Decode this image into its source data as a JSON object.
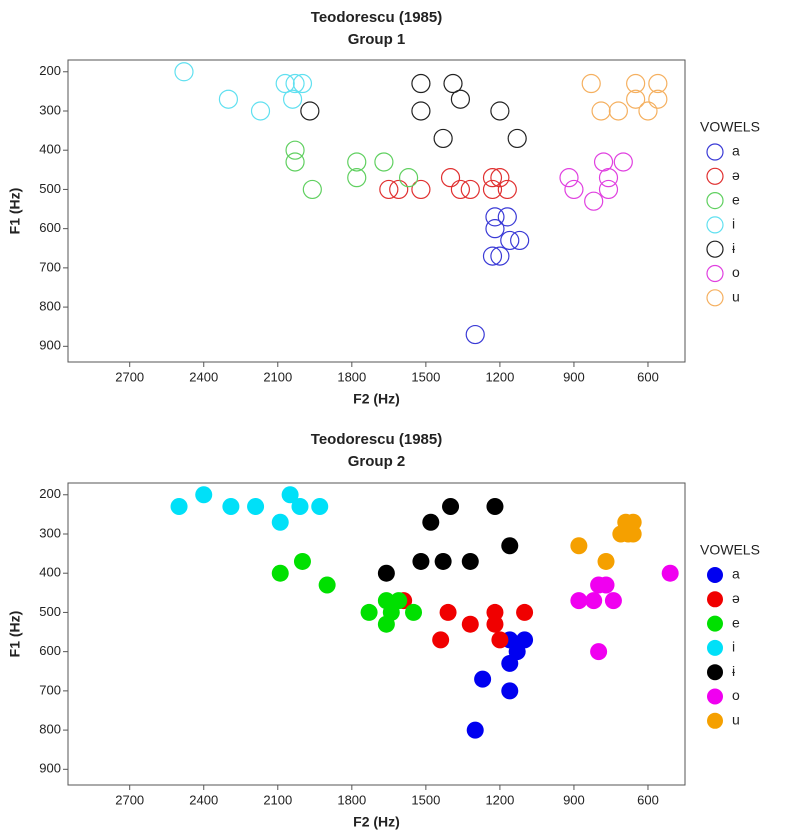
{
  "chart_data": [
    {
      "type": "scatter",
      "title": "Teodorescu (1985)",
      "subtitle": "Group 1",
      "x_label": "F2 (Hz)",
      "y_label": "F1 (Hz)",
      "xlim": [
        2950,
        450
      ],
      "xticks": [
        2700,
        2400,
        2100,
        1800,
        1500,
        1200,
        900,
        600
      ],
      "ylim": [
        940,
        170
      ],
      "yticks": [
        200,
        300,
        400,
        500,
        600,
        700,
        800,
        900
      ],
      "marker": "open",
      "legend_title": "VOWELS",
      "legend": "right",
      "series": [
        {
          "name": "a",
          "color": "#3a3ad6",
          "x": [
            1220,
            1170,
            1220,
            1160,
            1120,
            1230,
            1200,
            1300
          ],
          "y": [
            570,
            570,
            600,
            630,
            630,
            670,
            670,
            870
          ]
        },
        {
          "name": "ə",
          "color": "#e03030",
          "x": [
            1650,
            1610,
            1520,
            1400,
            1360,
            1320,
            1230,
            1200,
            1230,
            1170
          ],
          "y": [
            500,
            500,
            500,
            470,
            500,
            500,
            470,
            470,
            500,
            500
          ]
        },
        {
          "name": "e",
          "color": "#60d060",
          "x": [
            2030,
            2030,
            1960,
            1780,
            1780,
            1670,
            1570
          ],
          "y": [
            400,
            430,
            500,
            430,
            470,
            430,
            470
          ]
        },
        {
          "name": "i",
          "color": "#60e0f0",
          "x": [
            2480,
            2300,
            2170,
            2070,
            2030,
            2000,
            2040
          ],
          "y": [
            200,
            270,
            300,
            230,
            230,
            230,
            270
          ]
        },
        {
          "name": "ɨ",
          "color": "#222222",
          "x": [
            1520,
            1390,
            1360,
            1520,
            1200,
            1430,
            1130,
            1970
          ],
          "y": [
            230,
            230,
            270,
            300,
            300,
            370,
            370,
            300
          ]
        },
        {
          "name": "o",
          "color": "#e040e0",
          "x": [
            920,
            900,
            820,
            780,
            760,
            760,
            700
          ],
          "y": [
            470,
            500,
            530,
            430,
            470,
            500,
            430
          ]
        },
        {
          "name": "u",
          "color": "#f5b060",
          "x": [
            830,
            650,
            560,
            650,
            560,
            790,
            720,
            600
          ],
          "y": [
            230,
            230,
            230,
            270,
            270,
            300,
            300,
            300
          ]
        }
      ]
    },
    {
      "type": "scatter",
      "title": "Teodorescu (1985)",
      "subtitle": "Group 2",
      "x_label": "F2 (Hz)",
      "y_label": "F1 (Hz)",
      "xlim": [
        2950,
        450
      ],
      "xticks": [
        2700,
        2400,
        2100,
        1800,
        1500,
        1200,
        900,
        600
      ],
      "ylim": [
        940,
        170
      ],
      "yticks": [
        200,
        300,
        400,
        500,
        600,
        700,
        800,
        900
      ],
      "marker": "filled",
      "legend_title": "VOWELS",
      "legend": "right",
      "series": [
        {
          "name": "a",
          "color": "#0000f0",
          "x": [
            1160,
            1100,
            1130,
            1160,
            1270,
            1160,
            1300
          ],
          "y": [
            570,
            570,
            600,
            630,
            670,
            700,
            800
          ]
        },
        {
          "name": "ə",
          "color": "#f00000",
          "x": [
            1590,
            1440,
            1410,
            1320,
            1220,
            1220,
            1200,
            1100
          ],
          "y": [
            470,
            570,
            500,
            530,
            500,
            530,
            570,
            500
          ]
        },
        {
          "name": "e",
          "color": "#00e000",
          "x": [
            2090,
            2000,
            1900,
            1730,
            1660,
            1660,
            1610,
            1550,
            1640
          ],
          "y": [
            400,
            370,
            430,
            500,
            470,
            530,
            470,
            500,
            500
          ]
        },
        {
          "name": "i",
          "color": "#00e0f8",
          "x": [
            2500,
            2400,
            2290,
            2190,
            2090,
            2050,
            2010,
            1930
          ],
          "y": [
            230,
            200,
            230,
            230,
            270,
            200,
            230,
            230
          ]
        },
        {
          "name": "ɨ",
          "color": "#000000",
          "x": [
            1660,
            1480,
            1400,
            1520,
            1430,
            1320,
            1220,
            1160
          ],
          "y": [
            400,
            270,
            230,
            370,
            370,
            370,
            230,
            330
          ]
        },
        {
          "name": "o",
          "color": "#f000f0",
          "x": [
            880,
            820,
            800,
            770,
            740,
            800,
            510
          ],
          "y": [
            470,
            470,
            430,
            430,
            470,
            600,
            400
          ]
        },
        {
          "name": "u",
          "color": "#f5a000",
          "x": [
            880,
            770,
            710,
            680,
            690,
            660,
            660
          ],
          "y": [
            330,
            370,
            300,
            300,
            270,
            270,
            300
          ]
        }
      ]
    }
  ]
}
